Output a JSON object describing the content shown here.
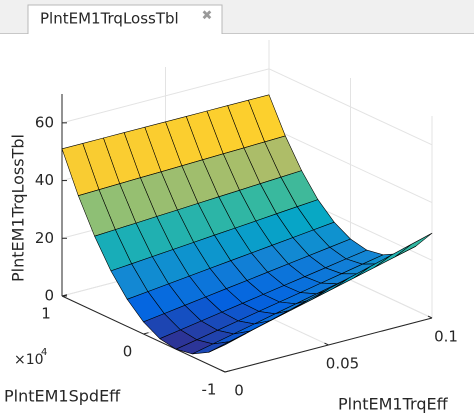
{
  "tab": {
    "title": "PlntEM1TrqLossTbl",
    "close": "✖"
  },
  "chart_data": {
    "type": "surface",
    "xlabel": "PlntEM1TrqEff",
    "ylabel": "PlntEM1SpdEff",
    "zlabel": "PlntEM1TrqLossTbl",
    "y_multiplier": "×10",
    "y_multiplier_exponent": "4",
    "x": [
      0,
      0.01,
      0.02,
      0.03,
      0.04,
      0.05,
      0.06,
      0.07,
      0.08,
      0.09,
      0.1
    ],
    "y": [
      -1,
      -0.8,
      -0.6,
      -0.4,
      -0.2,
      0,
      0.2,
      0.4,
      0.6,
      0.8,
      1
    ],
    "z": [
      [
        9.4,
        11.4,
        13.4,
        15.4,
        17.4,
        19.4,
        21.4,
        23.4,
        25.4,
        27.4,
        29.4
      ],
      [
        4.2,
        6.0,
        7.8,
        9.6,
        11.4,
        13.2,
        15.0,
        16.8,
        18.6,
        20.4,
        22.2
      ],
      [
        1.0,
        2.6,
        4.2,
        5.8,
        7.4,
        9.0,
        10.6,
        12.2,
        13.8,
        15.4,
        17.0
      ],
      [
        0,
        1.4,
        2.8,
        4.2,
        5.6,
        7.0,
        8.4,
        9.8,
        11.2,
        12.6,
        14.0
      ],
      [
        1.0,
        2.2,
        3.4,
        4.6,
        5.8,
        7.0,
        8.2,
        9.4,
        10.6,
        11.8,
        13.0
      ],
      [
        4.2,
        5.2,
        6.2,
        7.2,
        8.2,
        9.2,
        10.2,
        11.2,
        12.2,
        13.2,
        14.2
      ],
      [
        9.4,
        10.2,
        11.0,
        11.8,
        12.6,
        13.4,
        14.2,
        15.0,
        15.8,
        16.6,
        17.4
      ],
      [
        16.6,
        17.2,
        17.8,
        18.4,
        19.0,
        19.6,
        20.2,
        20.8,
        21.4,
        22.0,
        22.6
      ],
      [
        26.0,
        26.4,
        26.8,
        27.2,
        27.6,
        28.0,
        28.4,
        28.8,
        29.2,
        29.6,
        30.0
      ],
      [
        37.4,
        37.6,
        37.8,
        38.0,
        38.2,
        38.4,
        38.6,
        38.8,
        39.0,
        39.2,
        39.4
      ],
      [
        51.0,
        51.0,
        51.0,
        51.0,
        51.0,
        51.0,
        51.0,
        51.0,
        51.0,
        51.0,
        51.0
      ]
    ],
    "xlim": [
      0,
      0.1
    ],
    "xticks": [
      0,
      0.05,
      0.1
    ],
    "ylim": [
      -1,
      1
    ],
    "yticks": [
      -1,
      0,
      1
    ],
    "zlim": [
      0,
      70
    ],
    "zticks": [
      0,
      20,
      40,
      60
    ],
    "grid": true,
    "colormap": "parula",
    "edge_color": "#000000"
  }
}
